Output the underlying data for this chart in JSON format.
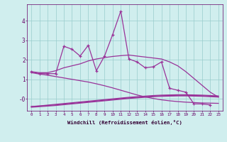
{
  "x": [
    0,
    1,
    2,
    3,
    4,
    5,
    6,
    7,
    8,
    9,
    10,
    11,
    12,
    13,
    14,
    15,
    16,
    17,
    18,
    19,
    20,
    21,
    22,
    23
  ],
  "line_jagged": [
    1.4,
    1.3,
    1.3,
    1.3,
    2.7,
    2.55,
    2.2,
    2.75,
    1.45,
    2.2,
    3.3,
    4.5,
    2.05,
    1.9,
    1.6,
    1.65,
    1.9,
    0.55,
    0.45,
    0.35,
    -0.25,
    -0.25,
    -0.3,
    null
  ],
  "line_smooth1": [
    1.4,
    1.35,
    1.35,
    1.45,
    1.6,
    1.7,
    1.8,
    1.95,
    2.05,
    2.12,
    2.18,
    2.22,
    2.25,
    2.2,
    2.15,
    2.1,
    2.05,
    1.9,
    1.7,
    1.4,
    1.05,
    0.7,
    0.35,
    0.1
  ],
  "line_descend": [
    1.35,
    1.28,
    1.22,
    1.15,
    1.08,
    1.01,
    0.94,
    0.87,
    0.78,
    0.68,
    0.57,
    0.45,
    0.33,
    0.21,
    0.11,
    0.03,
    -0.04,
    -0.09,
    -0.13,
    -0.16,
    -0.18,
    -0.2,
    -0.21,
    -0.22
  ],
  "line_flat1": [
    -0.38,
    -0.35,
    -0.31,
    -0.27,
    -0.23,
    -0.19,
    -0.15,
    -0.11,
    -0.07,
    -0.03,
    0.01,
    0.05,
    0.09,
    0.12,
    0.15,
    0.18,
    0.2,
    0.21,
    0.22,
    0.22,
    0.21,
    0.2,
    0.18,
    0.16
  ],
  "line_flat2": [
    -0.38,
    -0.36,
    -0.33,
    -0.3,
    -0.26,
    -0.22,
    -0.18,
    -0.14,
    -0.1,
    -0.06,
    -0.02,
    0.02,
    0.06,
    0.09,
    0.12,
    0.15,
    0.17,
    0.18,
    0.19,
    0.19,
    0.18,
    0.17,
    0.15,
    0.13
  ],
  "line_flat3": [
    -0.42,
    -0.39,
    -0.36,
    -0.33,
    -0.29,
    -0.25,
    -0.21,
    -0.17,
    -0.13,
    -0.09,
    -0.05,
    -0.01,
    0.03,
    0.06,
    0.09,
    0.12,
    0.14,
    0.15,
    0.16,
    0.16,
    0.15,
    0.14,
    0.12,
    0.1
  ],
  "color": "#993399",
  "bg_color": "#d0eeee",
  "grid_color": "#99cccc",
  "xlabel": "Windchill (Refroidissement éolien,°C)",
  "xlim": [
    -0.5,
    23.5
  ],
  "ylim": [
    -0.6,
    4.85
  ],
  "ytick_vals": [
    0,
    1,
    2,
    3,
    4
  ],
  "ytick_labels": [
    "-0",
    "1",
    "2",
    "3",
    "4"
  ],
  "xtick_labels": [
    "0",
    "1",
    "2",
    "3",
    "4",
    "5",
    "6",
    "7",
    "8",
    "9",
    "10",
    "11",
    "12",
    "13",
    "14",
    "15",
    "16",
    "17",
    "18",
    "19",
    "20",
    "21",
    "22",
    "23"
  ]
}
